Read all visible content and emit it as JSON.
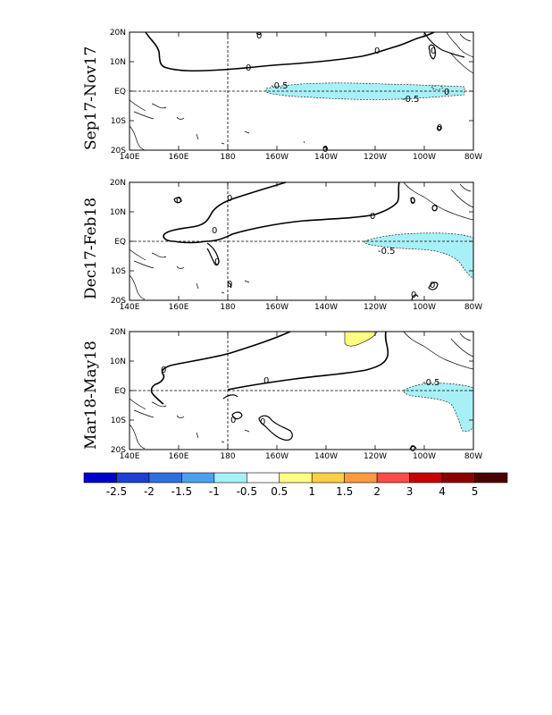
{
  "panels": [
    {
      "title": "Sep17-Nov17",
      "contour_labels": [
        "0",
        "0",
        "0",
        "0",
        "0",
        "-0.5",
        "-0.5",
        "0",
        "0"
      ]
    },
    {
      "title": "Dec17-Feb18",
      "contour_labels": [
        "0",
        "0",
        "0",
        "0",
        "0",
        "0",
        "-0.5",
        "0",
        "0",
        "0"
      ]
    },
    {
      "title": "Mar18-May18",
      "contour_labels": [
        "0",
        "0",
        "0",
        "0",
        "-0.5",
        "0"
      ]
    }
  ],
  "lat_ticks": [
    "20N",
    "10N",
    "EQ",
    "10S",
    "20S"
  ],
  "lon_ticks": [
    "140E",
    "160E",
    "180",
    "160W",
    "140W",
    "120W",
    "100W",
    "80W"
  ],
  "colorbar": {
    "labels": [
      "-2.5",
      "-2",
      "-1.5",
      "-1",
      "-0.5",
      "0.5",
      "1",
      "1.5",
      "2",
      "3",
      "4",
      "5"
    ],
    "colors": [
      "#0000cd",
      "#1e3fd2",
      "#2f6fe0",
      "#4f9ff0",
      "#a8f0f8",
      "#ffffff",
      "#ffff80",
      "#ffd040",
      "#ff9a3c",
      "#ff4a4a",
      "#c80000",
      "#8c0000",
      "#4a0000"
    ]
  },
  "colors": {
    "negative_shading": "#a8f0f8",
    "positive_shading": "#ffff80",
    "contour": "#000000"
  }
}
